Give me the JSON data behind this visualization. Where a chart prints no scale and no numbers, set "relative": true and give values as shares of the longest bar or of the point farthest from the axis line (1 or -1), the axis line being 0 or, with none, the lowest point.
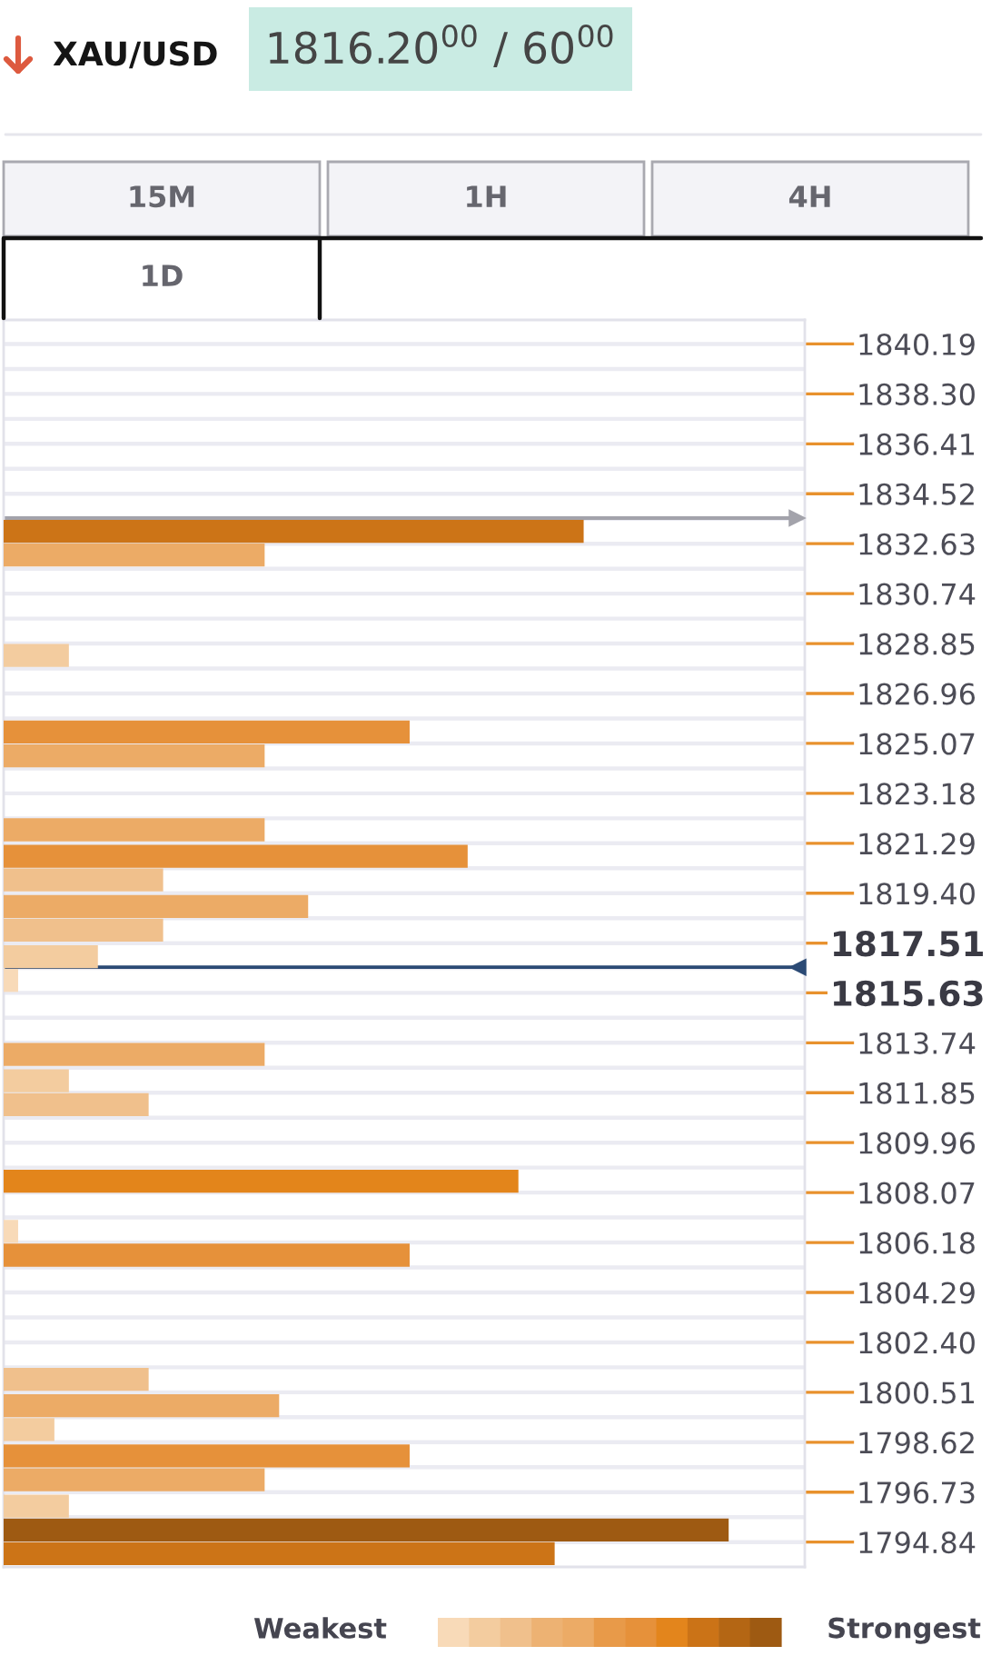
{
  "chart_data": {
    "type": "bar",
    "orientation": "horizontal",
    "relative": true,
    "title": "XAU/USD",
    "subtitle": "1816.20$^{00}$ / 60$^{00}$",
    "x": [
      1833.1,
      1832.2,
      1828.4,
      1825.5,
      1824.6,
      1821.8,
      1820.8,
      1819.9,
      1818.9,
      1818.0,
      1817.0,
      1816.1,
      1813.3,
      1812.3,
      1811.4,
      1808.5,
      1806.6,
      1805.7,
      1801.0,
      1800.0,
      1799.1,
      1798.1,
      1797.2,
      1796.2,
      1795.3,
      1794.4
    ],
    "values": [
      0.8,
      0.36,
      0.09,
      0.56,
      0.36,
      0.36,
      0.64,
      0.22,
      0.42,
      0.22,
      0.13,
      0.02,
      0.36,
      0.09,
      0.2,
      0.71,
      0.02,
      0.56,
      0.2,
      0.38,
      0.07,
      0.56,
      0.36,
      0.09,
      1.0,
      0.76
    ],
    "colors": [
      "#cc7417",
      "#ecab66",
      "#f3cc9f",
      "#e6913a",
      "#ecab66",
      "#ecab66",
      "#e6913a",
      "#f0c08c",
      "#ecab66",
      "#f0c08c",
      "#f3cc9f",
      "#f8dab8",
      "#ecab66",
      "#f3cc9f",
      "#f0c08c",
      "#e3851b",
      "#f8dab8",
      "#e6913a",
      "#f0c08c",
      "#ecab66",
      "#f3cc9f",
      "#e6913a",
      "#ecab66",
      "#f3cc9f",
      "#9e5a12",
      "#cc7417"
    ],
    "ylim": [
      1793.9,
      1841.1
    ],
    "yticks": [
      1840.19,
      {
        "value": 1838.3,
        "label": "1838.30"
      },
      1836.41,
      1834.52,
      1832.63,
      1830.74,
      1828.85,
      1826.96,
      1825.07,
      1823.18,
      1821.29,
      {
        "value": 1819.4,
        "label": "1819.40"
      },
      1817.51,
      1815.63,
      1813.74,
      1811.85,
      1809.96,
      1808.07,
      1806.18,
      1804.29,
      {
        "value": 1802.4,
        "label": "1802.40"
      },
      1800.51,
      1798.62,
      1796.73,
      1794.84
    ],
    "grid": "y",
    "ref_lines": [
      {
        "axis": "y",
        "value": 1833.6,
        "color": "#a3a3ab"
      },
      {
        "axis": "y",
        "value": 1816.6,
        "color": "#2b4a75"
      }
    ],
    "annotations": [
      "15M",
      "1H",
      "4H",
      "1D",
      "Weakest",
      "Strongest"
    ]
  }
}
